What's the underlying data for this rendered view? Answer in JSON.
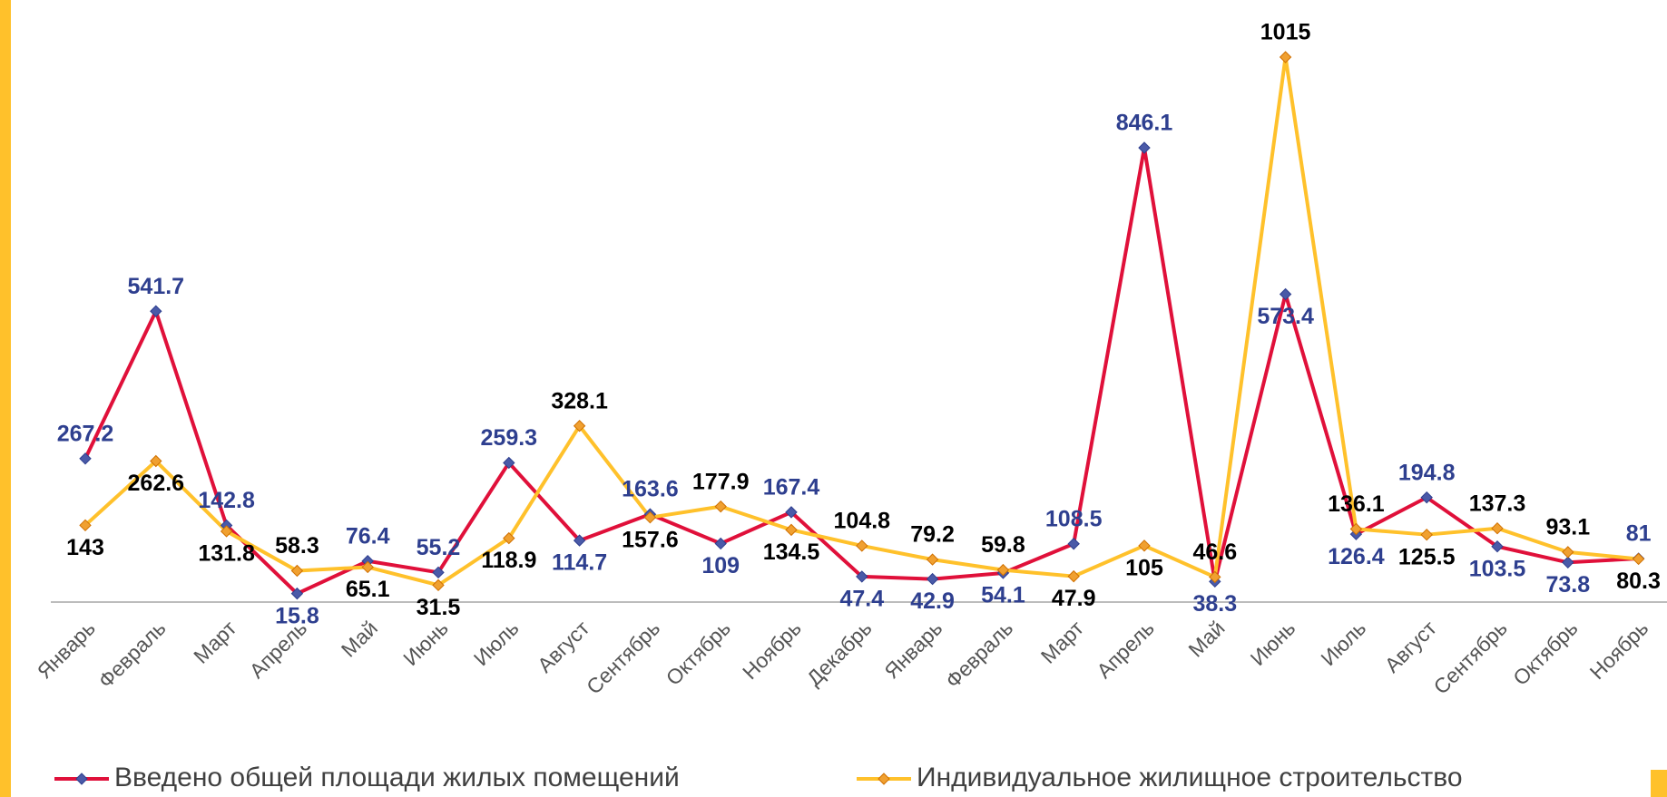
{
  "chart_data": {
    "type": "line",
    "categories": [
      "Январь",
      "Февраль",
      "Март",
      "Апрель",
      "Май",
      "Июнь",
      "Июль",
      "Август",
      "Сентябрь",
      "Октябрь",
      "Ноябрь",
      "Декабрь",
      "Январь",
      "Февраль",
      "Март",
      "Апрель",
      "Май",
      "Июнь",
      "Июль",
      "Август",
      "Сентябрь",
      "Октябрь",
      "Ноябрь"
    ],
    "series": [
      {
        "name": "Введено общей площади жилых помещений",
        "color": "#e0103a",
        "marker_color": "#4a5aa8",
        "label_color": "#2e3f8f",
        "values": [
          267.2,
          541.7,
          142.8,
          15.8,
          76.4,
          55.2,
          259.3,
          114.7,
          163.6,
          109,
          167.4,
          47.4,
          42.9,
          54.1,
          108.5,
          846.1,
          38.3,
          573.4,
          126.4,
          194.8,
          103.5,
          73.8,
          81
        ]
      },
      {
        "name": "Индивидуальное жилищное строительство",
        "color": "#ffc12b",
        "marker_color": "#f0a030",
        "label_color": "#000000",
        "values": [
          143,
          262.6,
          131.8,
          58.3,
          65.1,
          31.5,
          118.9,
          328.1,
          157.6,
          177.9,
          134.5,
          104.8,
          79.2,
          59.8,
          47.9,
          105,
          46.6,
          1015,
          136.1,
          125.5,
          137.3,
          93.1,
          80.3
        ]
      }
    ],
    "legend": "bottom"
  }
}
